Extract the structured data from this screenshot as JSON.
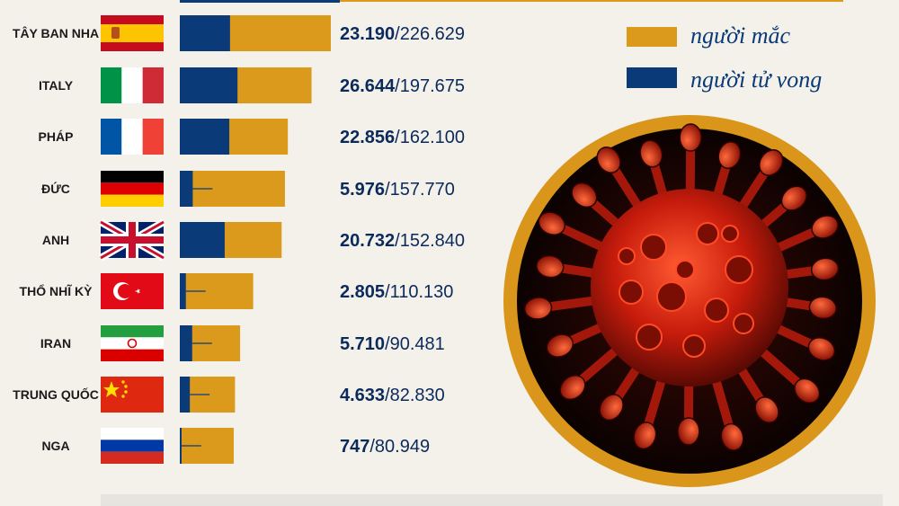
{
  "colors": {
    "cases": "#dc9a1c",
    "deaths": "#0b3a78",
    "text_dark": "#1b1b1b",
    "value_text": "#0b2a5c",
    "background": "#f4f1ea",
    "ring": "#d9961a",
    "virus_red": "#d9230f"
  },
  "legend": {
    "cases_label": "người mắc",
    "deaths_label": "người tử vong"
  },
  "chart_data": {
    "type": "bar",
    "orientation": "horizontal",
    "stacked_overlay": true,
    "categories": [
      "TÂY BAN NHA",
      "ITALY",
      "PHÁP",
      "ĐỨC",
      "ANH",
      "THỔ NHĨ KỲ",
      "IRAN",
      "TRUNG QUỐC",
      "NGA"
    ],
    "flags": [
      "spain-flag",
      "italy-flag",
      "france-flag",
      "germany-flag",
      "uk-flag",
      "turkey-flag",
      "iran-flag",
      "china-flag",
      "russia-flag"
    ],
    "series": [
      {
        "name": "người mắc",
        "values": [
          226629,
          197675,
          162100,
          157770,
          152840,
          110130,
          90481,
          82830,
          80949
        ]
      },
      {
        "name": "người tử vong",
        "values": [
          23190,
          26644,
          22856,
          5976,
          20732,
          2805,
          5710,
          4633,
          747
        ]
      }
    ],
    "value_labels": [
      {
        "deaths": "23.190",
        "cases": "/226.629"
      },
      {
        "deaths": "26.644",
        "cases": "/197.675"
      },
      {
        "deaths": "22.856",
        "cases": "/162.100"
      },
      {
        "deaths": "5.976",
        "cases": "/157.770"
      },
      {
        "deaths": "20.732",
        "cases": "/152.840"
      },
      {
        "deaths": "2.805",
        "cases": "/110.130"
      },
      {
        "deaths": "5.710",
        "cases": "/90.481"
      },
      {
        "deaths": "4.633",
        "cases": "/82.830"
      },
      {
        "deaths": "747",
        "cases": "/80.949"
      }
    ],
    "legend_position": "top-right",
    "grid": false,
    "xlabel": "",
    "ylabel": ""
  },
  "illustration": {
    "name": "coronavirus-illustration"
  }
}
